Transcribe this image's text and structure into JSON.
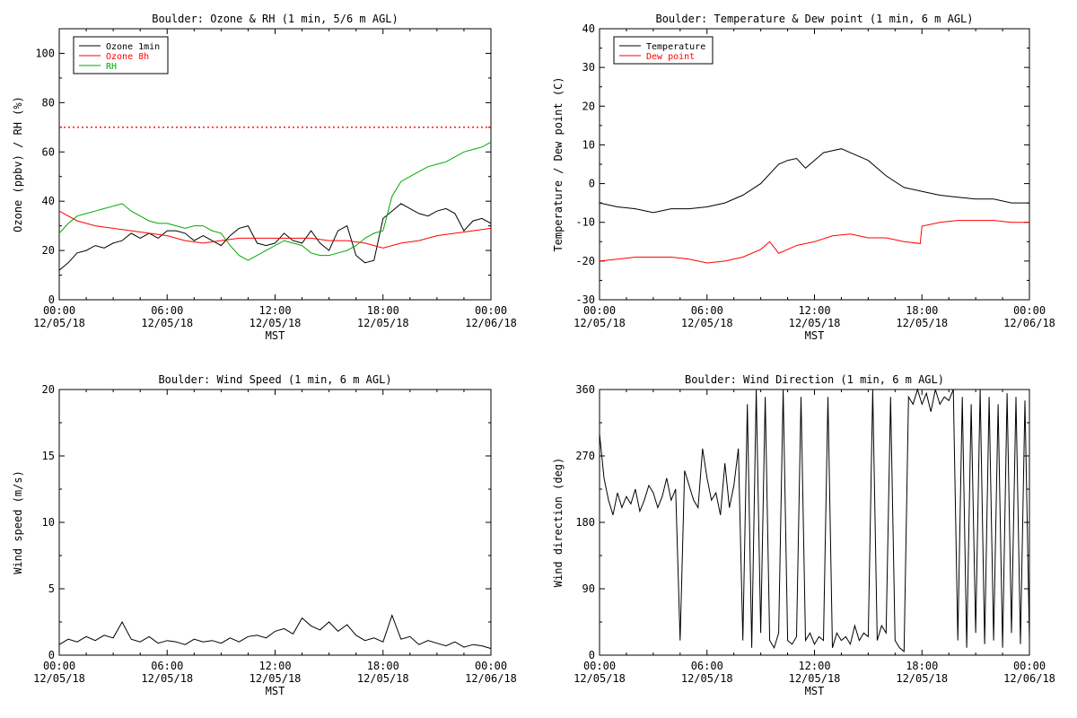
{
  "chart_data": [
    {
      "type": "line",
      "title": "Boulder: Ozone & RH (1 min, 5/6 m AGL)",
      "xlabel": "MST",
      "ylabel": "Ozone (ppbv) / RH (%)",
      "xticks": [
        {
          "top": "00:00",
          "bottom": "12/05/18"
        },
        {
          "top": "06:00",
          "bottom": "12/05/18"
        },
        {
          "top": "12:00",
          "bottom": "12/05/18"
        },
        {
          "top": "18:00",
          "bottom": "12/05/18"
        },
        {
          "top": "00:00",
          "bottom": "12/06/18"
        }
      ],
      "xlim": [
        0,
        24
      ],
      "ylim": [
        0,
        110
      ],
      "yticks": [
        0,
        20,
        40,
        60,
        80,
        100
      ],
      "legend_position": "top-left",
      "reference_line": {
        "y": 70,
        "color": "#ff0000",
        "style": "dotted"
      },
      "series": [
        {
          "name": "Ozone 1min",
          "color": "#000000",
          "x_hours": [
            0,
            0.5,
            1,
            1.5,
            2,
            2.5,
            3,
            3.5,
            4,
            4.5,
            5,
            5.5,
            6,
            6.5,
            7,
            7.5,
            8,
            8.5,
            9,
            9.5,
            10,
            10.5,
            11,
            11.5,
            12,
            12.5,
            13,
            13.5,
            14,
            14.5,
            15,
            15.5,
            16,
            16.5,
            17,
            17.5,
            18,
            18.5,
            19,
            19.5,
            20,
            20.5,
            21,
            21.5,
            22,
            22.5,
            23,
            23.5,
            24
          ],
          "values": [
            12,
            15,
            19,
            20,
            22,
            21,
            23,
            24,
            27,
            25,
            27,
            25,
            28,
            28,
            27,
            24,
            26,
            24,
            22,
            26,
            29,
            30,
            23,
            22,
            23,
            27,
            24,
            23,
            28,
            23,
            20,
            28,
            30,
            18,
            15,
            16,
            33,
            36,
            39,
            37,
            35,
            34,
            36,
            37,
            35,
            28,
            32,
            33,
            31
          ]
        },
        {
          "name": "Ozone 8h",
          "color": "#ff0000",
          "x_hours": [
            0,
            1,
            2,
            3,
            4,
            5,
            6,
            7,
            8,
            9,
            10,
            11,
            12,
            13,
            14,
            15,
            16,
            17,
            18,
            19,
            20,
            21,
            22,
            23,
            24
          ],
          "values": [
            36,
            32,
            30,
            29,
            28,
            27,
            26,
            24,
            23,
            24,
            25,
            25,
            25,
            25,
            25,
            24,
            24,
            23,
            21,
            23,
            24,
            26,
            27,
            28,
            29
          ]
        },
        {
          "name": "RH",
          "color": "#00aa00",
          "x_hours": [
            0,
            0.5,
            1,
            1.5,
            2,
            2.5,
            3,
            3.5,
            4,
            4.5,
            5,
            5.5,
            6,
            6.5,
            7,
            7.5,
            8,
            8.5,
            9,
            9.5,
            10,
            10.5,
            11,
            11.5,
            12,
            12.5,
            13,
            13.5,
            14,
            14.5,
            15,
            15.5,
            16,
            16.5,
            17,
            17.5,
            18,
            18.5,
            19,
            19.5,
            20,
            20.5,
            21,
            21.5,
            22,
            22.5,
            23,
            23.5,
            24
          ],
          "values": [
            27,
            31,
            34,
            35,
            36,
            37,
            38,
            39,
            36,
            34,
            32,
            31,
            31,
            30,
            29,
            30,
            30,
            28,
            27,
            22,
            18,
            16,
            18,
            20,
            22,
            24,
            23,
            22,
            19,
            18,
            18,
            19,
            20,
            22,
            25,
            27,
            28,
            42,
            48,
            50,
            52,
            54,
            55,
            56,
            58,
            60,
            61,
            62,
            64
          ]
        }
      ]
    },
    {
      "type": "line",
      "title": "Boulder: Temperature & Dew point (1 min, 6 m AGL)",
      "xlabel": "MST",
      "ylabel": "Temperature / Dew point (C)",
      "xticks": [
        {
          "top": "00:00",
          "bottom": "12/05/18"
        },
        {
          "top": "06:00",
          "bottom": "12/05/18"
        },
        {
          "top": "12:00",
          "bottom": "12/05/18"
        },
        {
          "top": "18:00",
          "bottom": "12/05/18"
        },
        {
          "top": "00:00",
          "bottom": "12/06/18"
        }
      ],
      "xlim": [
        0,
        24
      ],
      "ylim": [
        -30,
        40
      ],
      "yticks": [
        -30,
        -20,
        -10,
        0,
        10,
        20,
        30,
        40
      ],
      "legend_position": "top-left",
      "series": [
        {
          "name": "Temperature",
          "color": "#000000",
          "x_hours": [
            0,
            1,
            2,
            3,
            4,
            5,
            6,
            7,
            8,
            9,
            10,
            10.5,
            11,
            11.5,
            12,
            12.5,
            13,
            13.5,
            14,
            15,
            16,
            17,
            18,
            19,
            20,
            21,
            22,
            23,
            24
          ],
          "values": [
            -5,
            -6,
            -6.5,
            -7.5,
            -6.5,
            -6.5,
            -6,
            -5,
            -3,
            0,
            5,
            6,
            6.5,
            4,
            6,
            8,
            8.5,
            9,
            8,
            6,
            2,
            -1,
            -2,
            -3,
            -3.5,
            -4,
            -4,
            -5,
            -5
          ]
        },
        {
          "name": "Dew point",
          "color": "#ff0000",
          "x_hours": [
            0,
            1,
            2,
            3,
            4,
            5,
            6,
            7,
            8,
            9,
            9.5,
            10,
            11,
            12,
            13,
            14,
            15,
            16,
            17,
            17.9,
            18,
            19,
            20,
            21,
            22,
            23,
            24
          ],
          "values": [
            -20,
            -19.5,
            -19,
            -19,
            -19,
            -19.5,
            -20.5,
            -20,
            -19,
            -17,
            -15,
            -18,
            -16,
            -15,
            -13.5,
            -13,
            -14,
            -14,
            -15,
            -15.5,
            -11,
            -10,
            -9.5,
            -9.5,
            -9.5,
            -10,
            -10
          ]
        }
      ]
    },
    {
      "type": "line",
      "title": "Boulder: Wind Speed (1 min, 6 m AGL)",
      "xlabel": "MST",
      "ylabel": "Wind speed (m/s)",
      "xticks": [
        {
          "top": "00:00",
          "bottom": "12/05/18"
        },
        {
          "top": "06:00",
          "bottom": "12/05/18"
        },
        {
          "top": "12:00",
          "bottom": "12/05/18"
        },
        {
          "top": "18:00",
          "bottom": "12/05/18"
        },
        {
          "top": "00:00",
          "bottom": "12/06/18"
        }
      ],
      "xlim": [
        0,
        24
      ],
      "ylim": [
        0,
        20
      ],
      "yticks": [
        0,
        5,
        10,
        15,
        20
      ],
      "series": [
        {
          "name": "",
          "color": "#000000",
          "x_hours": [
            0,
            0.5,
            1,
            1.5,
            2,
            2.5,
            3,
            3.5,
            4,
            4.5,
            5,
            5.5,
            6,
            6.5,
            7,
            7.5,
            8,
            8.5,
            9,
            9.5,
            10,
            10.5,
            11,
            11.5,
            12,
            12.5,
            13,
            13.5,
            14,
            14.5,
            15,
            15.5,
            16,
            16.5,
            17,
            17.5,
            18,
            18.5,
            19,
            19.5,
            20,
            20.5,
            21,
            21.5,
            22,
            22.5,
            23,
            23.5,
            24
          ],
          "values": [
            0.8,
            1.2,
            1.0,
            1.4,
            1.1,
            1.5,
            1.3,
            2.5,
            1.2,
            1.0,
            1.4,
            0.9,
            1.1,
            1.0,
            0.8,
            1.2,
            1.0,
            1.1,
            0.9,
            1.3,
            1.0,
            1.4,
            1.5,
            1.3,
            1.8,
            2.0,
            1.6,
            2.8,
            2.2,
            1.9,
            2.5,
            1.8,
            2.3,
            1.5,
            1.1,
            1.3,
            1.0,
            3.0,
            1.2,
            1.4,
            0.8,
            1.1,
            0.9,
            0.7,
            1.0,
            0.6,
            0.8,
            0.7,
            0.5
          ]
        }
      ]
    },
    {
      "type": "line",
      "title": "Boulder: Wind Direction (1 min, 6 m AGL)",
      "xlabel": "MST",
      "ylabel": "Wind direction (deg)",
      "xticks": [
        {
          "top": "00:00",
          "bottom": "12/05/18"
        },
        {
          "top": "06:00",
          "bottom": "12/05/18"
        },
        {
          "top": "12:00",
          "bottom": "12/05/18"
        },
        {
          "top": "18:00",
          "bottom": "12/05/18"
        },
        {
          "top": "00:00",
          "bottom": "12/06/18"
        }
      ],
      "xlim": [
        0,
        24
      ],
      "ylim": [
        0,
        360
      ],
      "yticks": [
        0,
        90,
        180,
        270,
        360
      ],
      "series": [
        {
          "name": "",
          "color": "#000000",
          "x_hours": [
            0,
            0.25,
            0.5,
            0.75,
            1,
            1.25,
            1.5,
            1.75,
            2,
            2.25,
            2.5,
            2.75,
            3,
            3.25,
            3.5,
            3.75,
            4,
            4.25,
            4.5,
            4.75,
            5,
            5.25,
            5.5,
            5.75,
            6,
            6.25,
            6.5,
            6.75,
            7,
            7.25,
            7.5,
            7.75,
            8,
            8.25,
            8.5,
            8.75,
            9,
            9.25,
            9.5,
            9.75,
            10,
            10.25,
            10.5,
            10.75,
            11,
            11.25,
            11.5,
            11.75,
            12,
            12.25,
            12.5,
            12.75,
            13,
            13.25,
            13.5,
            13.75,
            14,
            14.25,
            14.5,
            14.75,
            15,
            15.25,
            15.5,
            15.75,
            16,
            16.25,
            16.5,
            16.75,
            17,
            17.25,
            17.5,
            17.75,
            18,
            18.25,
            18.5,
            18.75,
            19,
            19.25,
            19.5,
            19.75,
            20,
            20.25,
            20.5,
            20.75,
            21,
            21.25,
            21.5,
            21.75,
            22,
            22.25,
            22.5,
            22.75,
            23,
            23.25,
            23.5,
            23.75,
            24
          ],
          "values": [
            300,
            240,
            210,
            190,
            220,
            200,
            215,
            205,
            225,
            195,
            210,
            230,
            220,
            200,
            215,
            240,
            210,
            225,
            20,
            250,
            230,
            210,
            200,
            280,
            240,
            210,
            220,
            190,
            260,
            200,
            230,
            280,
            20,
            340,
            10,
            360,
            30,
            350,
            20,
            10,
            30,
            360,
            20,
            15,
            25,
            350,
            20,
            30,
            15,
            25,
            20,
            350,
            10,
            30,
            20,
            25,
            15,
            40,
            20,
            30,
            25,
            360,
            20,
            40,
            30,
            350,
            20,
            10,
            5,
            350,
            340,
            360,
            340,
            355,
            330,
            360,
            340,
            350,
            345,
            360,
            20,
            350,
            10,
            340,
            30,
            360,
            15,
            350,
            20,
            340,
            10,
            355,
            30,
            350,
            15,
            345,
            20
          ]
        }
      ]
    }
  ]
}
